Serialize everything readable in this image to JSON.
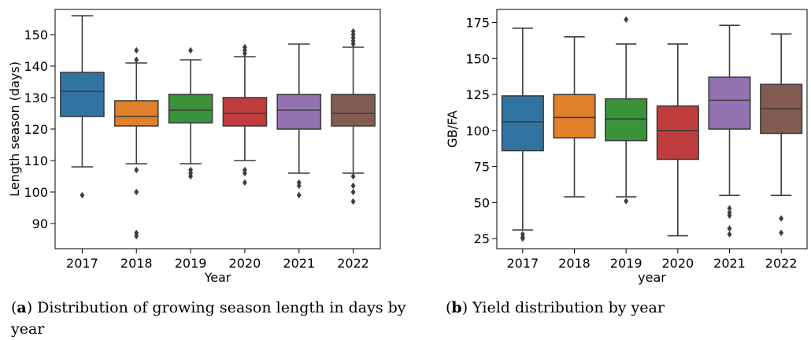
{
  "chart_data": [
    {
      "type": "box",
      "panel_letter": "a",
      "caption": ") Distribution of growing season length in days by year",
      "xlabel": "Year",
      "ylabel": "Length season (days)",
      "ylim": [
        82,
        158
      ],
      "yticks": [
        90,
        100,
        110,
        120,
        130,
        140,
        150
      ],
      "grid": false,
      "categories": [
        "2017",
        "2018",
        "2019",
        "2020",
        "2021",
        "2022"
      ],
      "colors": [
        "#3274a1",
        "#e1812c",
        "#3a923a",
        "#c03d3e",
        "#9372b2",
        "#845b53"
      ],
      "boxes": [
        {
          "q1": 124,
          "median": 132,
          "q3": 138,
          "whisker_low": 108,
          "whisker_high": 156,
          "outliers": [
            99
          ]
        },
        {
          "q1": 121,
          "median": 124,
          "q3": 129,
          "whisker_low": 109,
          "whisker_high": 141,
          "outliers": [
            107,
            100,
            87,
            86,
            142,
            145
          ]
        },
        {
          "q1": 122,
          "median": 126,
          "q3": 131,
          "whisker_low": 109,
          "whisker_high": 142,
          "outliers": [
            107,
            106,
            105,
            145
          ]
        },
        {
          "q1": 121,
          "median": 125,
          "q3": 130,
          "whisker_low": 110,
          "whisker_high": 143,
          "outliers": [
            107,
            106,
            103,
            144,
            145,
            146
          ]
        },
        {
          "q1": 120,
          "median": 126,
          "q3": 131,
          "whisker_low": 106,
          "whisker_high": 147,
          "outliers": [
            103,
            102,
            99
          ]
        },
        {
          "q1": 121,
          "median": 125,
          "q3": 131,
          "whisker_low": 106,
          "whisker_high": 146,
          "outliers": [
            105,
            102,
            100,
            97,
            147,
            148,
            149,
            150,
            151
          ]
        }
      ]
    },
    {
      "type": "box",
      "panel_letter": "b",
      "caption": ") Yield distribution by year",
      "xlabel": "year",
      "ylabel": "GB/FA",
      "ylim": [
        18,
        184
      ],
      "yticks": [
        25,
        50,
        75,
        100,
        125,
        150,
        175
      ],
      "grid": false,
      "categories": [
        "2017",
        "2018",
        "2019",
        "2020",
        "2021",
        "2022"
      ],
      "colors": [
        "#3274a1",
        "#e1812c",
        "#3a923a",
        "#c03d3e",
        "#9372b2",
        "#845b53"
      ],
      "boxes": [
        {
          "q1": 86,
          "median": 106,
          "q3": 124,
          "whisker_low": 31,
          "whisker_high": 171,
          "outliers": [
            28,
            26,
            25
          ]
        },
        {
          "q1": 95,
          "median": 109,
          "q3": 125,
          "whisker_low": 54,
          "whisker_high": 165,
          "outliers": []
        },
        {
          "q1": 93,
          "median": 108,
          "q3": 122,
          "whisker_low": 54,
          "whisker_high": 160,
          "outliers": [
            51,
            177
          ]
        },
        {
          "q1": 80,
          "median": 100,
          "q3": 117,
          "whisker_low": 27,
          "whisker_high": 160,
          "outliers": []
        },
        {
          "q1": 101,
          "median": 121,
          "q3": 137,
          "whisker_low": 55,
          "whisker_high": 173,
          "outliers": [
            46,
            43,
            41,
            32,
            28
          ]
        },
        {
          "q1": 98,
          "median": 115,
          "q3": 132,
          "whisker_low": 55,
          "whisker_high": 167,
          "outliers": [
            39,
            29
          ]
        }
      ]
    }
  ]
}
